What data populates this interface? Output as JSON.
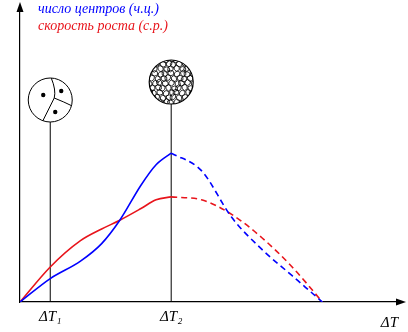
{
  "chart_data": {
    "type": "line",
    "x": [
      0,
      10,
      20,
      27,
      33,
      40,
      45,
      50,
      60,
      70,
      80,
      90,
      100
    ],
    "series": [
      {
        "name": "число центров (ч.ц.)",
        "color": "#0000ff",
        "line_style": "solid",
        "values": [
          0,
          8,
          14,
          20,
          28,
          40,
          47,
          51,
          null,
          null,
          null,
          null,
          null
        ]
      },
      {
        "name": "число центров (ч.ц.)",
        "color": "#0000ff",
        "line_style": "dashed",
        "values": [
          null,
          null,
          null,
          null,
          null,
          null,
          null,
          51,
          45,
          29,
          18,
          9,
          0
        ]
      },
      {
        "name": "скорость роста (с.р.)",
        "color": "#e8141b",
        "line_style": "solid",
        "values": [
          0,
          12,
          21,
          25,
          28,
          32,
          35,
          36,
          null,
          null,
          null,
          null,
          null
        ]
      },
      {
        "name": "скорость роста (с.р.)",
        "color": "#e8141b",
        "line_style": "dashed",
        "values": [
          null,
          null,
          null,
          null,
          null,
          null,
          null,
          36,
          35,
          30,
          22,
          12,
          0
        ]
      }
    ],
    "x_label": "ΔT",
    "xlim": [
      0,
      125
    ],
    "xticks": [
      {
        "value": 10,
        "label": "ΔT₁"
      },
      {
        "value": 50,
        "label": "ΔT₂"
      }
    ],
    "ylim": [
      0,
      100
    ],
    "tick_labels": "x",
    "grid": false,
    "legend": "top left"
  }
}
